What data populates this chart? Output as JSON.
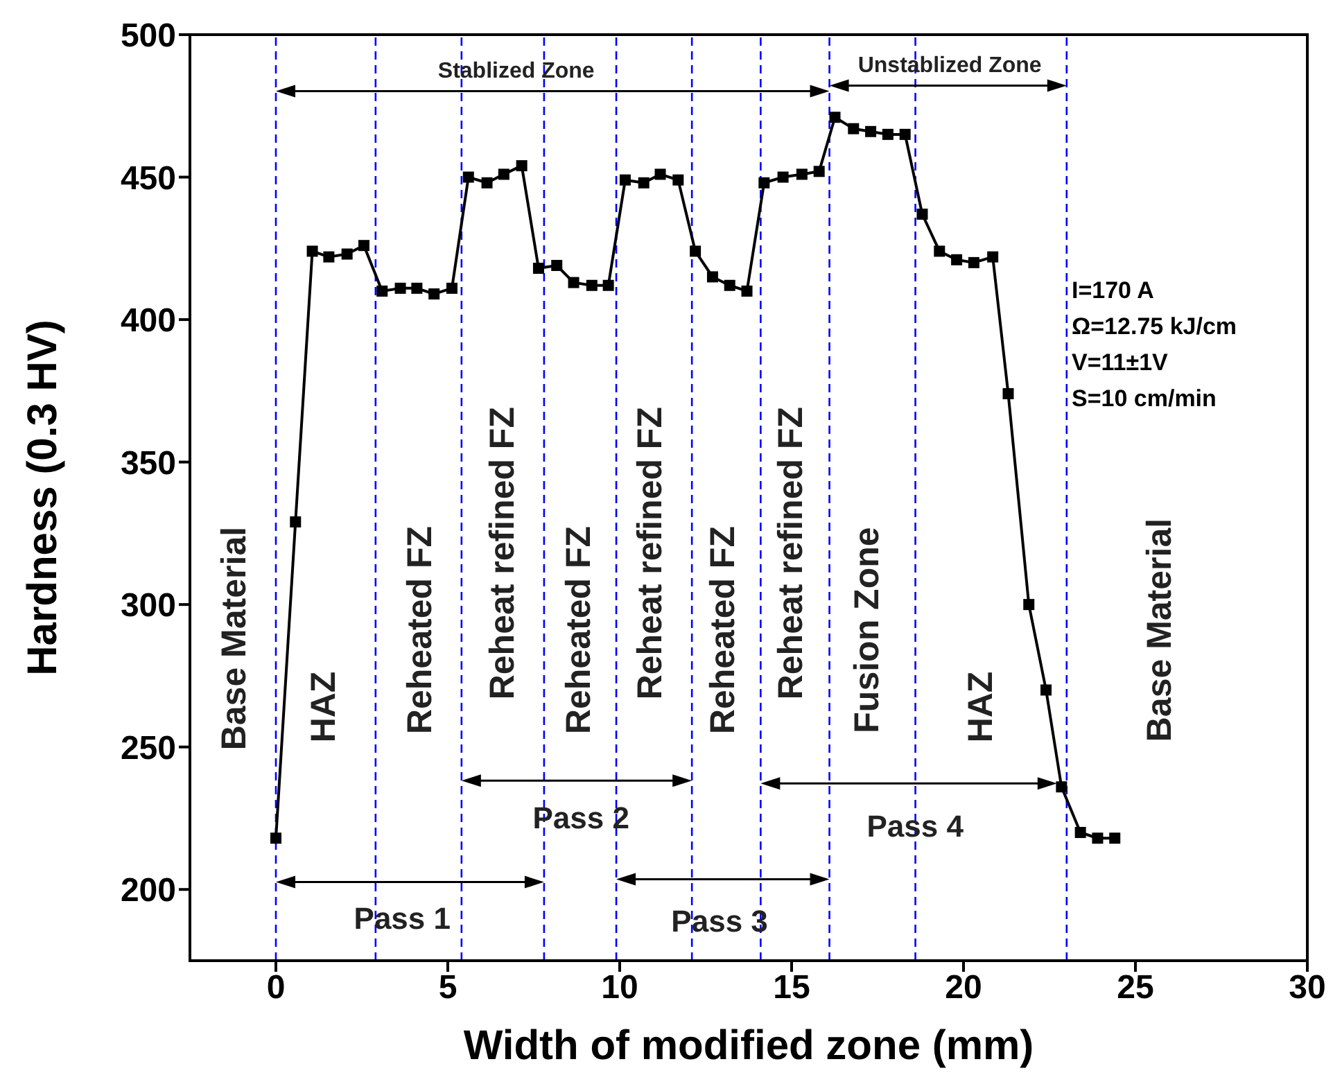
{
  "chart_data": {
    "type": "line",
    "xlabel": "Width of modified zone (mm)",
    "ylabel": "Hardness (0.3 HV)",
    "xlim": [
      -2.5,
      30
    ],
    "xticks": [
      0,
      5,
      10,
      15,
      20,
      25,
      30
    ],
    "ylim": [
      175,
      500
    ],
    "yticks": [
      200,
      250,
      300,
      350,
      400,
      450,
      500
    ],
    "grid": false,
    "marker": "square",
    "line_style": "solid",
    "series": [
      {
        "color": "#000000",
        "x": [
          0,
          0.57,
          1.06,
          1.54,
          2.07,
          2.56,
          3.09,
          3.62,
          4.1,
          4.6,
          5.12,
          5.6,
          6.14,
          6.63,
          7.15,
          7.64,
          8.17,
          8.66,
          9.19,
          9.67,
          10.16,
          10.7,
          11.18,
          11.7,
          12.2,
          12.7,
          13.2,
          13.7,
          14.2,
          14.75,
          15.3,
          15.8,
          16.26,
          16.8,
          17.3,
          17.8,
          18.3,
          18.8,
          19.3,
          19.8,
          20.3,
          20.85,
          21.3,
          21.9,
          22.4,
          22.85,
          23.4,
          23.9,
          24.4
        ],
        "values": [
          218,
          329,
          424,
          422,
          423,
          426,
          410,
          411,
          411,
          409,
          411,
          450,
          448,
          451,
          454,
          418,
          419,
          413,
          412,
          412,
          449,
          448,
          451,
          449,
          424,
          415,
          412,
          410,
          448,
          450,
          451,
          452,
          471,
          467,
          466,
          465,
          465,
          437,
          424,
          421,
          420,
          422,
          374,
          300,
          270,
          236,
          220,
          218,
          218
        ]
      }
    ],
    "ref_lines": [
      {
        "axis": "x",
        "value": 0,
        "color": "#0000ff",
        "line_style": "dashed"
      },
      {
        "axis": "x",
        "value": 2.9,
        "color": "#0000ff",
        "line_style": "dashed"
      },
      {
        "axis": "x",
        "value": 5.4,
        "color": "#0000ff",
        "line_style": "dashed"
      },
      {
        "axis": "x",
        "value": 7.8,
        "color": "#0000ff",
        "line_style": "dashed"
      },
      {
        "axis": "x",
        "value": 9.9,
        "color": "#0000ff",
        "line_style": "dashed"
      },
      {
        "axis": "x",
        "value": 12.1,
        "color": "#0000ff",
        "line_style": "dashed"
      },
      {
        "axis": "x",
        "value": 14.1,
        "color": "#0000ff",
        "line_style": "dashed"
      },
      {
        "axis": "x",
        "value": 16.1,
        "color": "#0000ff",
        "line_style": "dashed"
      },
      {
        "axis": "x",
        "value": 18.6,
        "color": "#0000ff",
        "line_style": "dashed"
      },
      {
        "axis": "x",
        "value": 23,
        "color": "#0000ff",
        "line_style": "dashed"
      }
    ],
    "annotations": [
      "Stablized Zone",
      "Unstablized Zone",
      "Pass 1",
      "Pass 2",
      "Pass 3",
      "Pass 4",
      "Base Material",
      "HAZ",
      "Reheated FZ",
      "Reheat refined FZ",
      "Reheated FZ",
      "Reheat refined FZ",
      "Reheated FZ",
      "Reheat refined FZ",
      "Fusion Zone",
      "HAZ",
      "Base Material",
      "I=170 A",
      "Ω=12.75 kJ/cm",
      "V=11±1V",
      "S=10 cm/min"
    ]
  }
}
